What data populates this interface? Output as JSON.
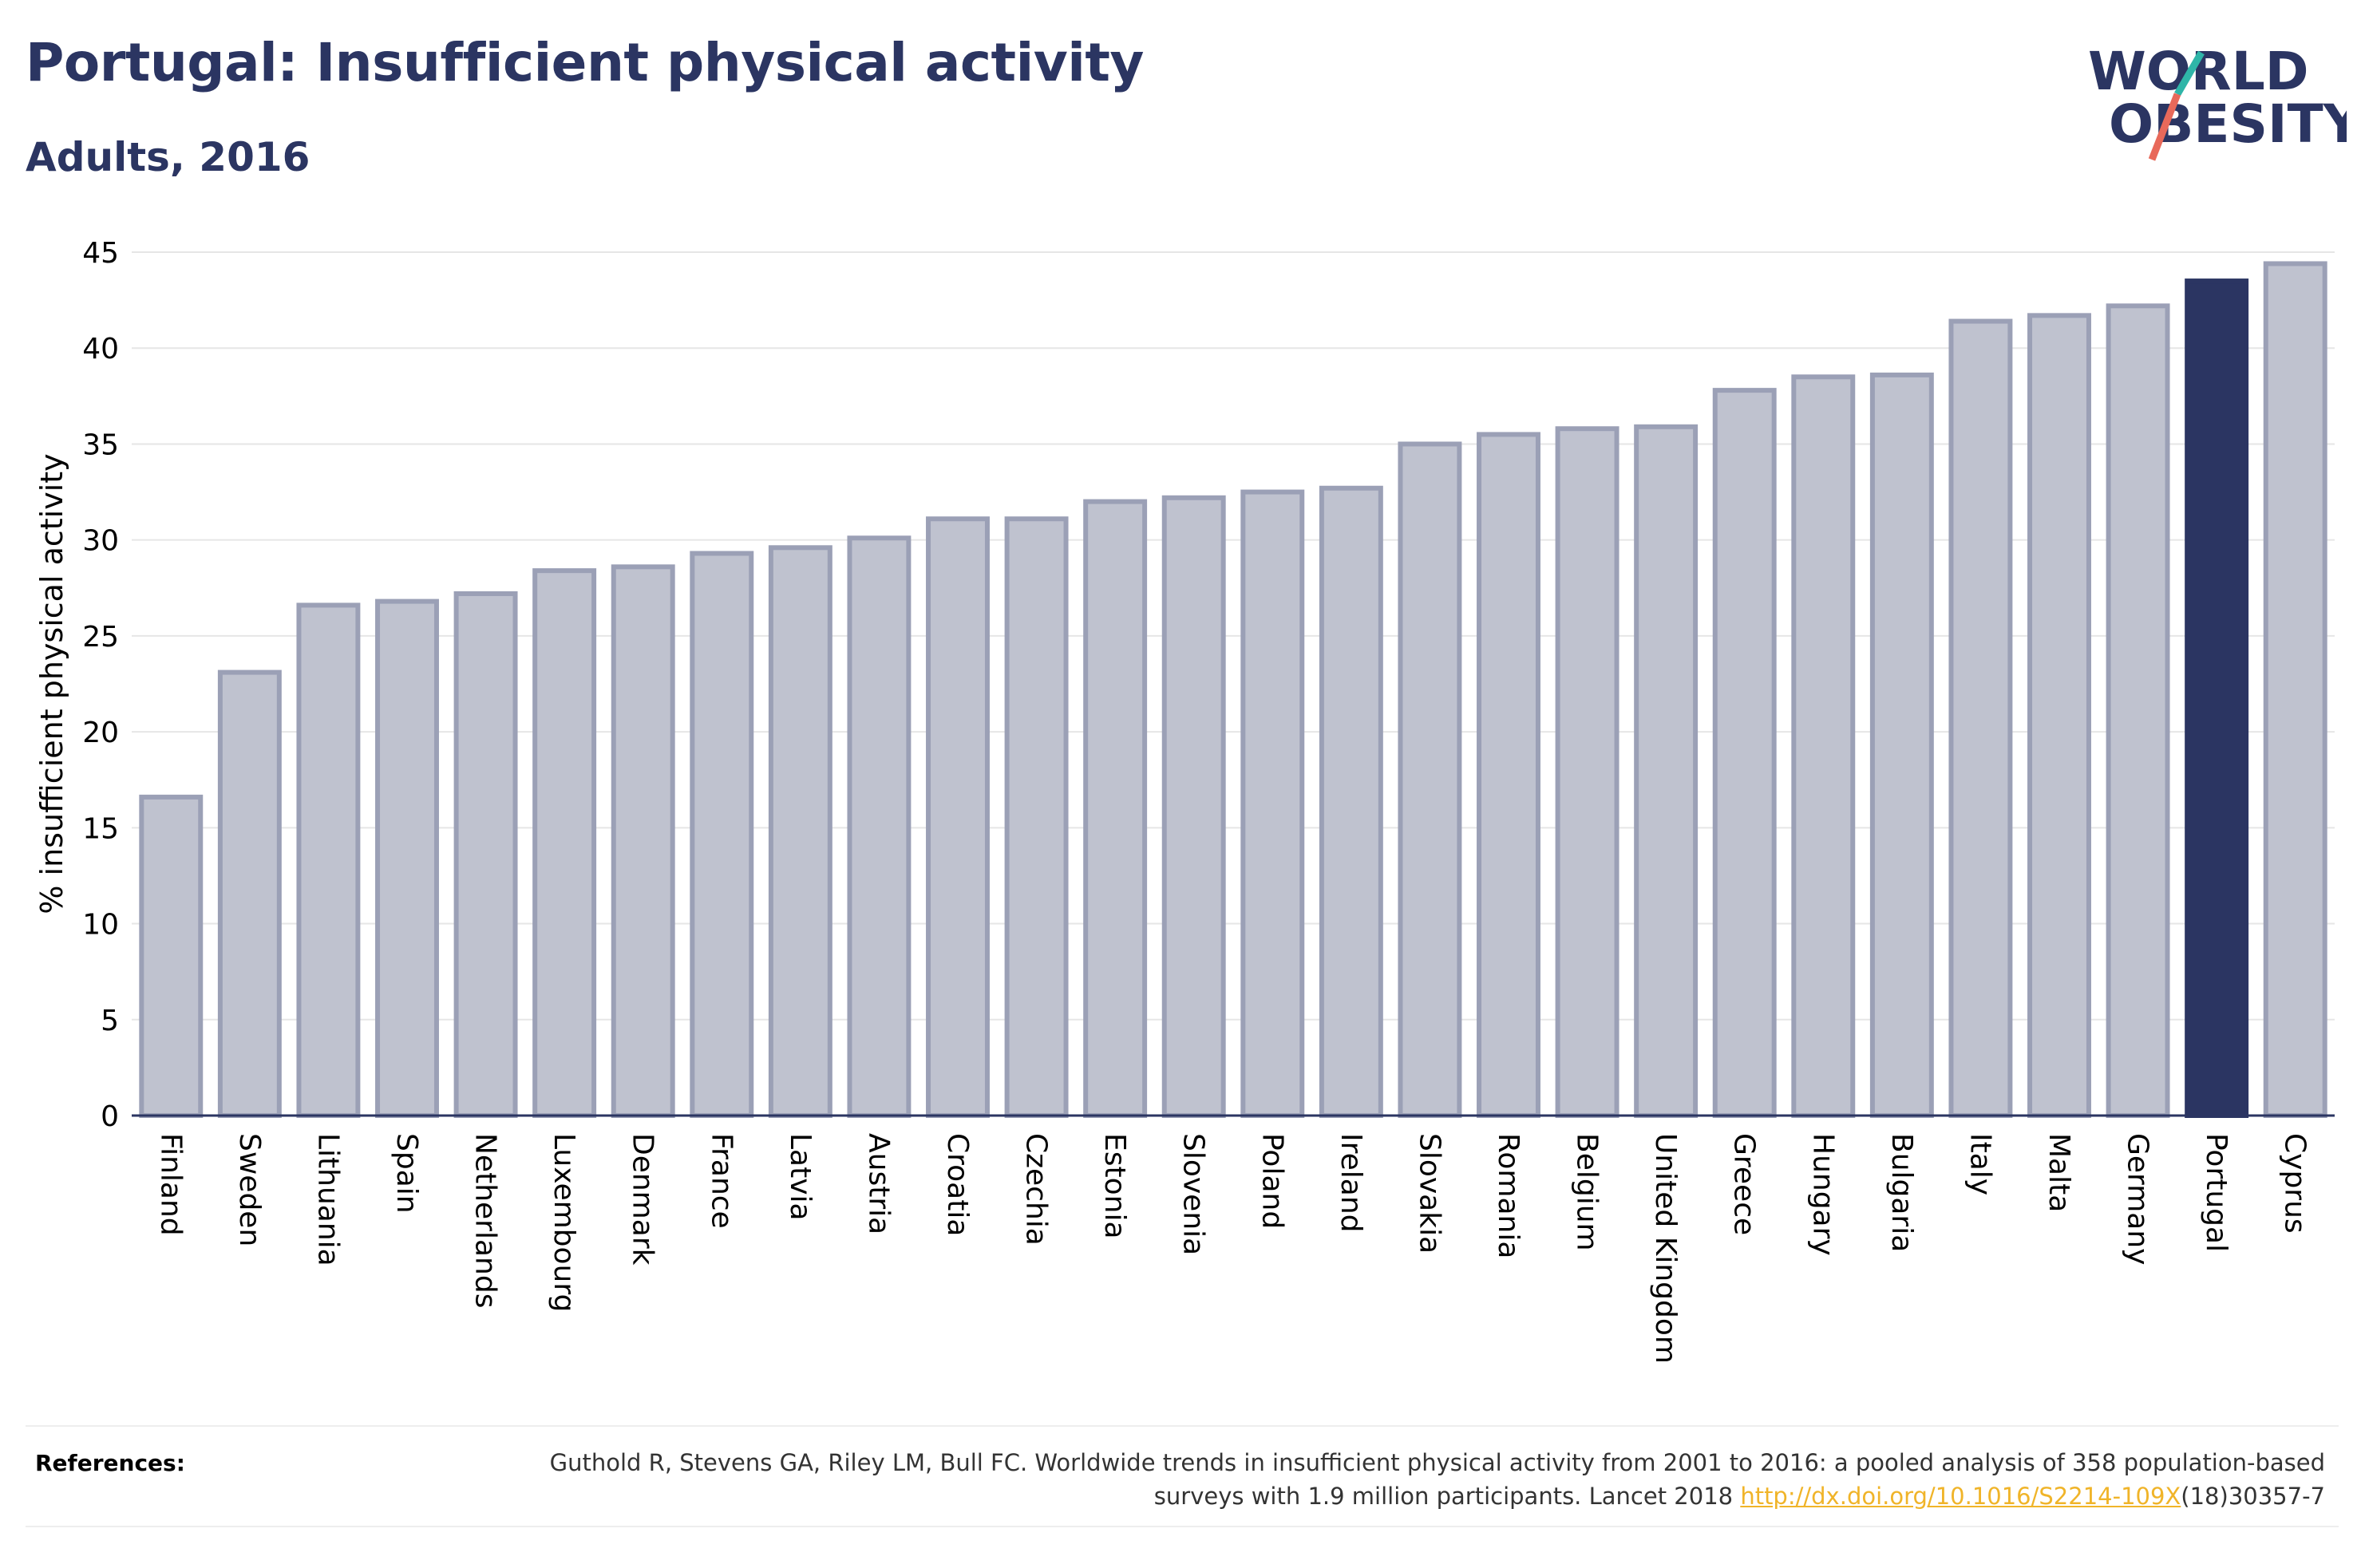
{
  "header": {
    "title": "Portugal: Insufficient physical activity",
    "subtitle": "Adults, 2016"
  },
  "logo": {
    "line1": "WORLD",
    "line2": "OBESITY",
    "text_color": "#2b3562",
    "slash_colors": [
      "#2fb5a8",
      "#e8695a"
    ]
  },
  "chart_data": {
    "type": "bar",
    "ylabel": "% insufficient physical activity",
    "xlabel": "",
    "ylim": [
      0,
      45
    ],
    "yticks": [
      0,
      5,
      10,
      15,
      20,
      25,
      30,
      35,
      40,
      45
    ],
    "grid": true,
    "highlight": "Portugal",
    "colors": {
      "bar": "#bfc2cf",
      "bar_border": "#9ba0b6",
      "highlight": "#2b3562",
      "grid": "#e6e6e6",
      "axis": "#2b3562"
    },
    "categories": [
      "Finland",
      "Sweden",
      "Lithuania",
      "Spain",
      "Netherlands",
      "Luxembourg",
      "Denmark",
      "France",
      "Latvia",
      "Austria",
      "Croatia",
      "Czechia",
      "Estonia",
      "Slovenia",
      "Poland",
      "Ireland",
      "Slovakia",
      "Romania",
      "Belgium",
      "United Kingdom",
      "Greece",
      "Hungary",
      "Bulgaria",
      "Italy",
      "Malta",
      "Germany",
      "Portugal",
      "Cyprus"
    ],
    "values": [
      16.6,
      23.1,
      26.6,
      26.8,
      27.2,
      28.4,
      28.6,
      29.3,
      29.6,
      30.1,
      31.1,
      31.1,
      32.0,
      32.2,
      32.5,
      32.7,
      35.0,
      35.5,
      35.8,
      35.9,
      37.8,
      38.5,
      38.6,
      41.4,
      41.7,
      42.2,
      43.5,
      44.4
    ]
  },
  "references": {
    "label": "References:",
    "text_before": "Guthold R, Stevens GA, Riley LM, Bull FC. Worldwide trends in insufficient physical activity from 2001 to 2016: a pooled analysis of 358 population-based surveys with 1.9 million participants. Lancet 2018 ",
    "link": "http://dx.doi.org/10.1016/S2214-109X",
    "text_after": "(18)30357-7",
    "link_color": "#f0b429"
  }
}
